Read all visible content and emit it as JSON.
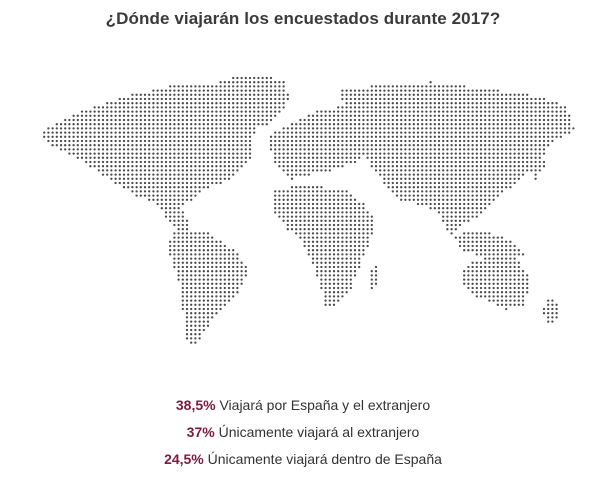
{
  "title": "¿Dónde viajarán los encuestados durante 2017?",
  "colors": {
    "accent": "#7b1a3c",
    "text": "#333333",
    "dots": "#4a4a4a"
  },
  "chart_data": {
    "type": "table",
    "title": "¿Dónde viajarán los encuestados durante 2017?",
    "rows": [
      {
        "value": "38,5%",
        "label": "Viajará por España y el extranjero"
      },
      {
        "value": "37%",
        "label": "Únicamente viajará al extranjero"
      },
      {
        "value": "24,5%",
        "label": "Únicamente viajará dentro de España"
      }
    ]
  }
}
